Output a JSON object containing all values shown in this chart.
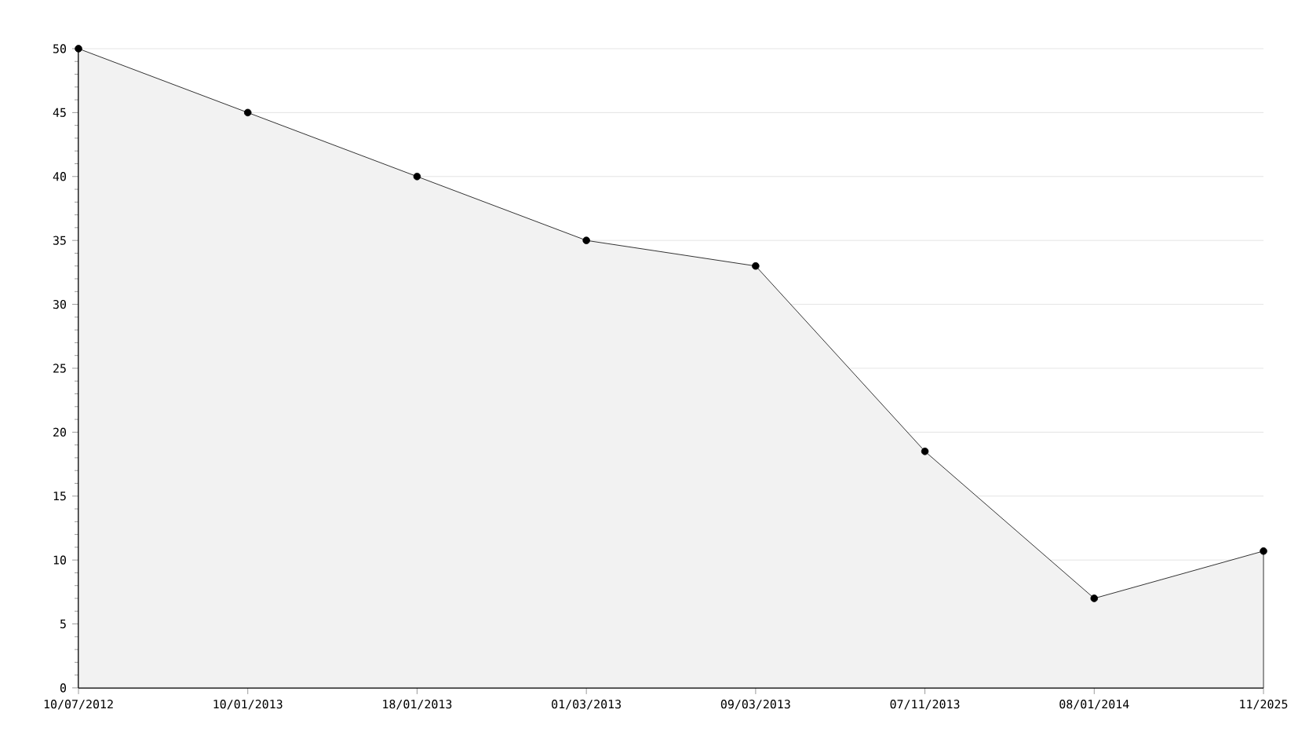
{
  "chart_data": {
    "type": "area",
    "categories": [
      "10/07/2012",
      "10/01/2013",
      "18/01/2013",
      "01/03/2013",
      "09/03/2013",
      "07/11/2013",
      "08/01/2014",
      "11/2025"
    ],
    "values": [
      50,
      45,
      40,
      35,
      33,
      18.5,
      7,
      10.7
    ],
    "color": "#000000",
    "ylim": [
      0,
      50
    ],
    "yticks": [
      0,
      5,
      10,
      15,
      20,
      25,
      30,
      35,
      40,
      45,
      50
    ],
    "grid": "y",
    "marker": "circle",
    "line_style": "solid"
  }
}
